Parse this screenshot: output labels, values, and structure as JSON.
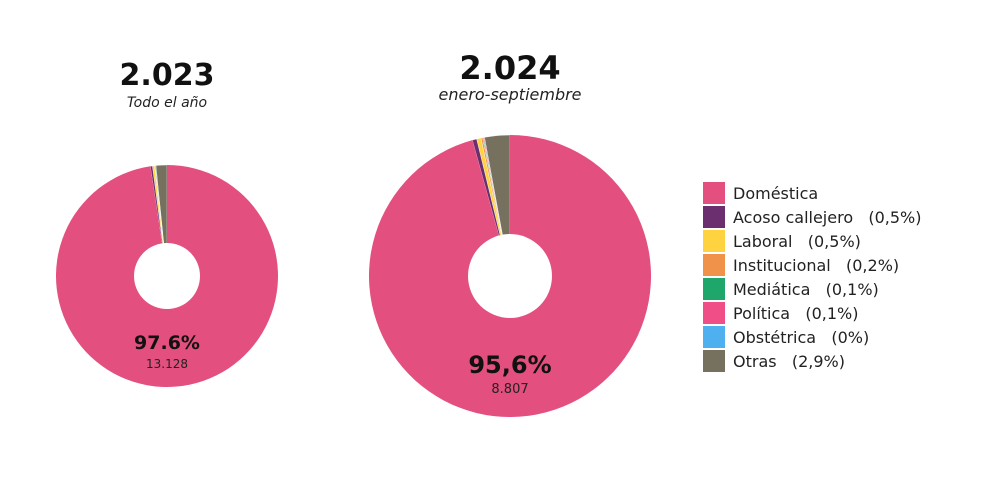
{
  "colors": {
    "domestica": "#e34f7f",
    "acoso": "#6b2e6e",
    "laboral": "#ffd23f",
    "institucional": "#f0924a",
    "mediatica": "#1fa66a",
    "politica": "#ef4f86",
    "obstetrica": "#4fb0ef",
    "otras": "#76705f"
  },
  "chart_data": [
    {
      "type": "pie",
      "title": "2.023",
      "subtitle": "Todo el año",
      "main_label": "97.6%",
      "main_value": "13.128",
      "slices": [
        {
          "key": "domestica",
          "value": 97.6
        },
        {
          "key": "acoso",
          "value": 0.3
        },
        {
          "key": "laboral",
          "value": 0.3
        },
        {
          "key": "institucional",
          "value": 0.1
        },
        {
          "key": "mediatica",
          "value": 0.1
        },
        {
          "key": "politica",
          "value": 0.0
        },
        {
          "key": "obstetrica",
          "value": 0.0
        },
        {
          "key": "otras",
          "value": 1.6
        }
      ]
    },
    {
      "type": "pie",
      "title": "2.024",
      "subtitle": "enero-septiembre",
      "main_label": "95,6%",
      "main_value": "8.807",
      "slices": [
        {
          "key": "domestica",
          "value": 95.6
        },
        {
          "key": "acoso",
          "value": 0.5
        },
        {
          "key": "laboral",
          "value": 0.5
        },
        {
          "key": "institucional",
          "value": 0.2
        },
        {
          "key": "mediatica",
          "value": 0.1
        },
        {
          "key": "politica",
          "value": 0.1
        },
        {
          "key": "obstetrica",
          "value": 0.0
        },
        {
          "key": "otras",
          "value": 2.9
        }
      ]
    }
  ],
  "legend": [
    {
      "key": "domestica",
      "label": "Doméstica"
    },
    {
      "key": "acoso",
      "label": "Acoso callejero   (0,5%)"
    },
    {
      "key": "laboral",
      "label": "Laboral   (0,5%)"
    },
    {
      "key": "institucional",
      "label": "Institucional   (0,2%)"
    },
    {
      "key": "mediatica",
      "label": "Mediática   (0,1%)"
    },
    {
      "key": "politica",
      "label": "Política   (0,1%)"
    },
    {
      "key": "obstetrica",
      "label": "Obstétrica   (0%)"
    },
    {
      "key": "otras",
      "label": "Otras   (2,9%)"
    }
  ]
}
